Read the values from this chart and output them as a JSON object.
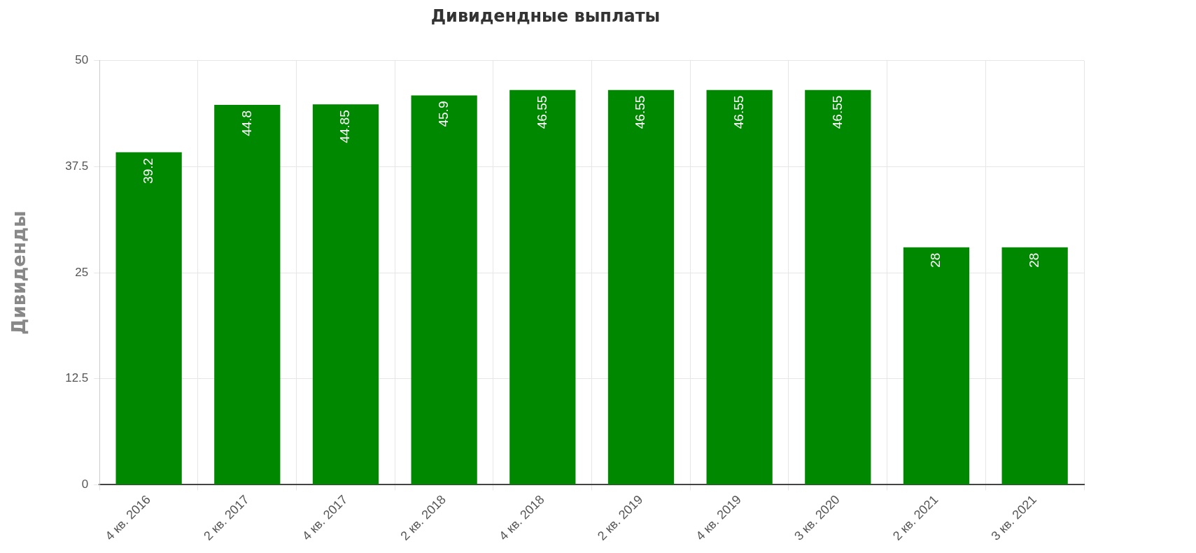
{
  "chart_data": {
    "type": "bar",
    "title": "Дивидендные выплаты",
    "ylabel": "Дивиденды",
    "categories": [
      "4 кв. 2016",
      "2 кв. 2017",
      "4 кв. 2017",
      "2 кв. 2018",
      "4 кв. 2018",
      "2 кв. 2019",
      "4 кв. 2019",
      "3 кв. 2020",
      "2 кв. 2021",
      "3 кв. 2021"
    ],
    "values": [
      39.2,
      44.8,
      44.85,
      45.9,
      46.55,
      46.55,
      46.55,
      46.55,
      28,
      28
    ],
    "color": "#008800",
    "ylim": [
      0,
      50
    ],
    "yticks": [
      0,
      12.5,
      25,
      37.5,
      50
    ],
    "grid": true,
    "data_labels": true
  }
}
